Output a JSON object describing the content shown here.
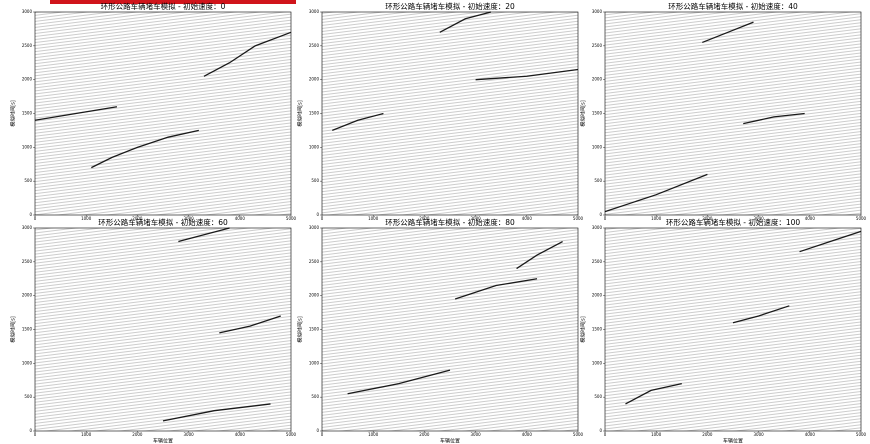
{
  "chart_data": [
    {
      "type": "line",
      "title": "环形公路车辆堵车模拟 - 初始速度：0",
      "ylabel": "模拟时间[s]",
      "xlim": [
        0,
        5000
      ],
      "ylim": [
        0,
        3000
      ],
      "xticks": [
        0,
        1000,
        2000,
        3000,
        4000,
        5000
      ],
      "yticks": [
        0,
        500,
        1000,
        1500,
        2000,
        2500,
        3000
      ],
      "series": [
        {
          "color": "#1a1a1a",
          "x": [
            1100,
            1500,
            2000,
            2600,
            3200
          ],
          "values": [
            700,
            850,
            1000,
            1150,
            1250
          ]
        },
        {
          "color": "#1a1a1a",
          "x": [
            3300,
            3800,
            4300,
            5000
          ],
          "values": [
            2050,
            2250,
            2500,
            2700
          ]
        },
        {
          "color": "#1a1a1a",
          "x": [
            0,
            800,
            1600
          ],
          "values": [
            1400,
            1500,
            1600
          ]
        }
      ]
    },
    {
      "type": "line",
      "title": "环形公路车辆堵车模拟 - 初始速度：20",
      "ylabel": "模拟时间[s]",
      "xlim": [
        0,
        5000
      ],
      "ylim": [
        0,
        3000
      ],
      "xticks": [
        0,
        1000,
        2000,
        3000,
        4000,
        5000
      ],
      "yticks": [
        0,
        500,
        1000,
        1500,
        2000,
        2500,
        3000
      ],
      "series": [
        {
          "color": "#1a1a1a",
          "x": [
            2300,
            2800,
            3300
          ],
          "values": [
            2700,
            2900,
            3000
          ]
        },
        {
          "color": "#1a1a1a",
          "x": [
            3000,
            4000,
            5000
          ],
          "values": [
            2000,
            2050,
            2150
          ]
        },
        {
          "color": "#1a1a1a",
          "x": [
            200,
            700,
            1200
          ],
          "values": [
            1250,
            1400,
            1500
          ]
        }
      ]
    },
    {
      "type": "line",
      "title": "环形公路车辆堵车模拟 - 初始速度：40",
      "ylabel": "模拟时间[s]",
      "xlim": [
        0,
        5000
      ],
      "ylim": [
        0,
        3000
      ],
      "xticks": [
        0,
        1000,
        2000,
        3000,
        4000,
        5000
      ],
      "yticks": [
        0,
        500,
        1000,
        1500,
        2000,
        2500,
        3000
      ],
      "series": [
        {
          "color": "#1a1a1a",
          "x": [
            1900,
            2400,
            2900
          ],
          "values": [
            2550,
            2700,
            2850
          ]
        },
        {
          "color": "#1a1a1a",
          "x": [
            2700,
            3300,
            3900
          ],
          "values": [
            1350,
            1450,
            1500
          ]
        },
        {
          "color": "#1a1a1a",
          "x": [
            0,
            1000,
            2000
          ],
          "values": [
            50,
            300,
            600
          ]
        }
      ]
    },
    {
      "type": "line",
      "title": "环形公路车辆堵车模拟 - 初始速度：60",
      "ylabel": "模拟时间[s]",
      "xlabel": "车辆位置",
      "xlim": [
        0,
        5000
      ],
      "ylim": [
        0,
        3000
      ],
      "xticks": [
        0,
        1000,
        2000,
        3000,
        4000,
        5000
      ],
      "yticks": [
        0,
        500,
        1000,
        1500,
        2000,
        2500,
        3000
      ],
      "series": [
        {
          "color": "#1a1a1a",
          "x": [
            2800,
            3300,
            3800
          ],
          "values": [
            2800,
            2900,
            3000
          ]
        },
        {
          "color": "#1a1a1a",
          "x": [
            3600,
            4200,
            4800
          ],
          "values": [
            1450,
            1550,
            1700
          ]
        },
        {
          "color": "#1a1a1a",
          "x": [
            2500,
            3500,
            4600
          ],
          "values": [
            150,
            300,
            400
          ]
        }
      ]
    },
    {
      "type": "line",
      "title": "环形公路车辆堵车模拟 - 初始速度：80",
      "ylabel": "模拟时间[s]",
      "xlabel": "车辆位置",
      "xlim": [
        0,
        5000
      ],
      "ylim": [
        0,
        3000
      ],
      "xticks": [
        0,
        1000,
        2000,
        3000,
        4000,
        5000
      ],
      "yticks": [
        0,
        500,
        1000,
        1500,
        2000,
        2500,
        3000
      ],
      "series": [
        {
          "color": "#1a1a1a",
          "x": [
            3800,
            4200,
            4700
          ],
          "values": [
            2400,
            2600,
            2800
          ]
        },
        {
          "color": "#1a1a1a",
          "x": [
            2600,
            3400,
            4200
          ],
          "values": [
            1950,
            2150,
            2250
          ]
        },
        {
          "color": "#1a1a1a",
          "x": [
            500,
            1500,
            2500
          ],
          "values": [
            550,
            700,
            900
          ]
        }
      ]
    },
    {
      "type": "line",
      "title": "环形公路车辆堵车模拟 - 初始速度：100",
      "ylabel": "模拟时间[s]",
      "xlabel": "车辆位置",
      "xlim": [
        0,
        5000
      ],
      "ylim": [
        0,
        3000
      ],
      "xticks": [
        0,
        1000,
        2000,
        3000,
        4000,
        5000
      ],
      "yticks": [
        0,
        500,
        1000,
        1500,
        2000,
        2500,
        3000
      ],
      "series": [
        {
          "color": "#1a1a1a",
          "x": [
            400,
            900,
            1500
          ],
          "values": [
            400,
            600,
            700
          ]
        },
        {
          "color": "#1a1a1a",
          "x": [
            2500,
            3000,
            3600
          ],
          "values": [
            1600,
            1700,
            1850
          ]
        },
        {
          "color": "#1a1a1a",
          "x": [
            3800,
            4400,
            5000
          ],
          "values": [
            2650,
            2800,
            2950
          ]
        }
      ]
    }
  ]
}
